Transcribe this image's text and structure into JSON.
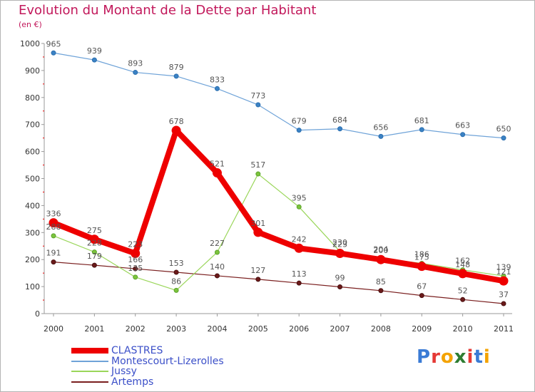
{
  "page": {
    "title": "Evolution du Montant de la Dette par Habitant",
    "subtitle": "(en €)"
  },
  "logo": {
    "text": "Proxiti",
    "letter_colors": [
      "#3a7bd5",
      "#e53935",
      "#f4a300",
      "#2e7d32",
      "#e53935",
      "#3a7bd5",
      "#f4a300"
    ]
  },
  "chart_data": {
    "type": "line",
    "title": "Evolution du Montant de la Dette par Habitant",
    "subtitle": "(en €)",
    "xlabel": "",
    "ylabel": "",
    "categories": [
      "2000",
      "2001",
      "2002",
      "2003",
      "2004",
      "2005",
      "2006",
      "2007",
      "2008",
      "2009",
      "2010",
      "2011"
    ],
    "ylim": [
      0,
      1000
    ],
    "yticks": [
      0,
      100,
      200,
      300,
      400,
      500,
      600,
      700,
      800,
      900,
      1000
    ],
    "grid": false,
    "legend_position": "bottom-left",
    "series": [
      {
        "name": "CLASTRES",
        "color": "#ee0000",
        "values": [
          336,
          275,
          223,
          678,
          521,
          301,
          242,
          223,
          200,
          175,
          148,
          121
        ]
      },
      {
        "name": "Montescourt-Lizerolles",
        "color": "#6fa3d8",
        "values": [
          965,
          939,
          893,
          879,
          833,
          773,
          679,
          684,
          656,
          681,
          663,
          650
        ]
      },
      {
        "name": "Jussy",
        "color": "#9ad65a",
        "values": [
          288,
          228,
          135,
          86,
          227,
          517,
          395,
          230,
          204,
          186,
          162,
          139
        ]
      },
      {
        "name": "Artemps",
        "color": "#7a1f1f",
        "values": [
          191,
          179,
          166,
          153,
          140,
          127,
          113,
          99,
          85,
          67,
          52,
          37
        ]
      }
    ]
  }
}
